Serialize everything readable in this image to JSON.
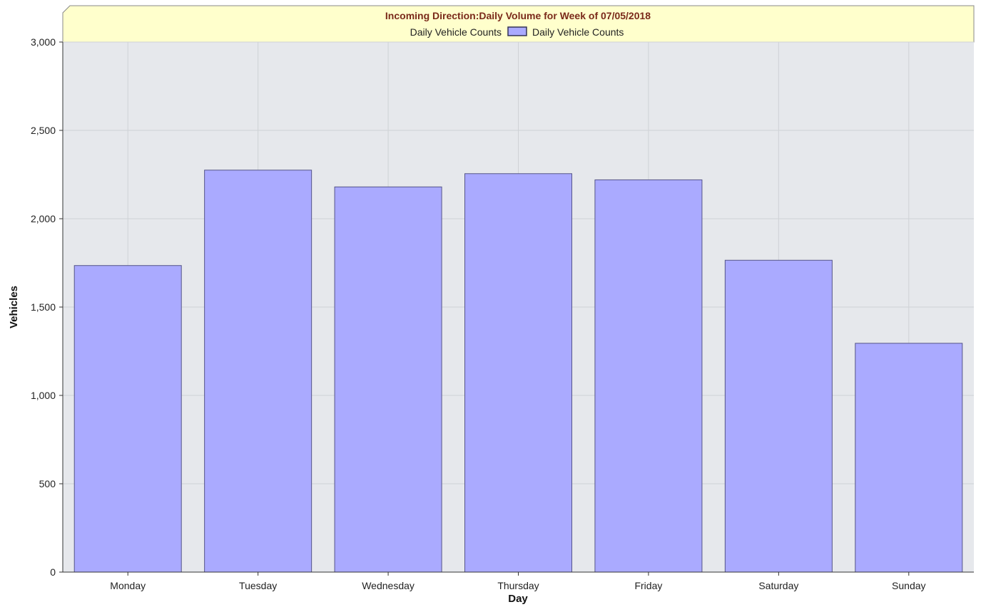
{
  "chart_data": {
    "type": "bar",
    "title": "Incoming Direction:Daily Volume for Week of 07/05/2018",
    "legend_label": "Daily Vehicle Counts",
    "legend_placement": "top-center",
    "xlabel": "Day",
    "ylabel": "Vehicles",
    "categories": [
      "Monday",
      "Tuesday",
      "Wednesday",
      "Thursday",
      "Friday",
      "Saturday",
      "Sunday"
    ],
    "series": [
      {
        "name": "Daily Vehicle Counts",
        "values": [
          1735,
          2275,
          2180,
          2255,
          2220,
          1765,
          1295
        ]
      }
    ],
    "ylim": [
      0,
      3000
    ],
    "yticks": [
      0,
      500,
      1000,
      1500,
      2000,
      2500,
      3000
    ],
    "ytick_labels": [
      "0",
      "500",
      "1,000",
      "1,500",
      "2,000",
      "2,500",
      "3,000"
    ],
    "grid": true,
    "colors": {
      "bar_fill": "#aaaaff",
      "bar_stroke": "#555588",
      "plot_background": "#e6e8ec",
      "title_background": "#ffffcc",
      "title_text": "#7a2a1a",
      "grid": "#cfd2d6"
    }
  }
}
